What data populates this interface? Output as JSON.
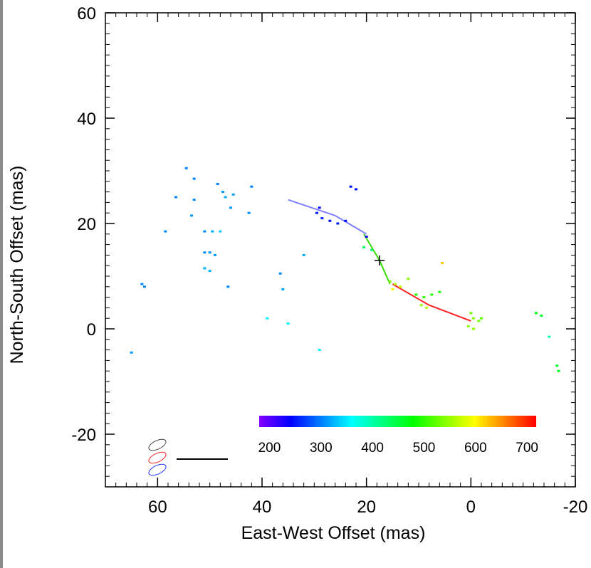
{
  "chart_data": {
    "type": "scatter",
    "title": "",
    "xlabel": "East-West Offset (mas)",
    "ylabel": "North-South Offset (mas)",
    "xlim": [
      70,
      -20
    ],
    "ylim": [
      -30,
      60
    ],
    "x_ticks": [
      "60",
      "40",
      "20",
      "0",
      "-20"
    ],
    "x_tick_values": [
      60,
      40,
      20,
      0,
      -20
    ],
    "y_ticks": [
      "60",
      "40",
      "20",
      "0",
      "-20"
    ],
    "y_tick_values": [
      60,
      40,
      20,
      0,
      -20
    ],
    "x_reversed": true,
    "grid": false,
    "color_axis": {
      "range": [
        180,
        715
      ],
      "ticks": [
        "200",
        "300",
        "400",
        "500",
        "600",
        "700"
      ],
      "tick_values": [
        200,
        300,
        400,
        500,
        600,
        700
      ],
      "colormap": "rainbow (violet-blue-cyan-green-yellow-red)"
    },
    "lines": [
      {
        "color": "#7f7fff",
        "points": [
          [
            35,
            24.5
          ],
          [
            26,
            21.5
          ],
          [
            20,
            18
          ]
        ]
      },
      {
        "color": "#33dd00",
        "points": [
          [
            20.5,
            18
          ],
          [
            17.5,
            13
          ],
          [
            15.5,
            8.5
          ]
        ]
      },
      {
        "color": "#ff2222",
        "points": [
          [
            15,
            8.5
          ],
          [
            8,
            4.5
          ],
          [
            0,
            1.5
          ]
        ]
      }
    ],
    "center_marker": [
      17.5,
      13
    ],
    "points": [
      {
        "x": 54.5,
        "y": 30.5,
        "c": 300
      },
      {
        "x": 53,
        "y": 28.5,
        "c": 300
      },
      {
        "x": 56.5,
        "y": 25,
        "c": 300
      },
      {
        "x": 53,
        "y": 24.5,
        "c": 305
      },
      {
        "x": 53.5,
        "y": 21.5,
        "c": 310
      },
      {
        "x": 58.5,
        "y": 18.5,
        "c": 305
      },
      {
        "x": 51,
        "y": 18.5,
        "c": 305
      },
      {
        "x": 49.5,
        "y": 18.5,
        "c": 320
      },
      {
        "x": 48,
        "y": 18.5,
        "c": 330
      },
      {
        "x": 51,
        "y": 14.5,
        "c": 305
      },
      {
        "x": 50,
        "y": 14.5,
        "c": 310
      },
      {
        "x": 49,
        "y": 14,
        "c": 315
      },
      {
        "x": 51,
        "y": 11.5,
        "c": 320
      },
      {
        "x": 50,
        "y": 11,
        "c": 325
      },
      {
        "x": 48.5,
        "y": 27.5,
        "c": 300
      },
      {
        "x": 47.5,
        "y": 26,
        "c": 310
      },
      {
        "x": 47,
        "y": 25,
        "c": 320
      },
      {
        "x": 45.5,
        "y": 25.5,
        "c": 315
      },
      {
        "x": 46,
        "y": 23,
        "c": 310
      },
      {
        "x": 42,
        "y": 27,
        "c": 300
      },
      {
        "x": 42.5,
        "y": 22,
        "c": 305
      },
      {
        "x": 46.5,
        "y": 8,
        "c": 305
      },
      {
        "x": 63,
        "y": 8.5,
        "c": 300
      },
      {
        "x": 62.5,
        "y": 8,
        "c": 305
      },
      {
        "x": 65,
        "y": -4.5,
        "c": 310
      },
      {
        "x": 36.5,
        "y": 10.5,
        "c": 305
      },
      {
        "x": 36,
        "y": 7.5,
        "c": 315
      },
      {
        "x": 32,
        "y": 14,
        "c": 320
      },
      {
        "x": 39,
        "y": 2,
        "c": 350
      },
      {
        "x": 35,
        "y": 1,
        "c": 355
      },
      {
        "x": 29,
        "y": -4,
        "c": 360
      },
      {
        "x": 29,
        "y": 23,
        "c": 245
      },
      {
        "x": 29.5,
        "y": 22,
        "c": 250
      },
      {
        "x": 28.5,
        "y": 21,
        "c": 255
      },
      {
        "x": 27,
        "y": 20.5,
        "c": 250
      },
      {
        "x": 25.5,
        "y": 20,
        "c": 255
      },
      {
        "x": 24,
        "y": 20.5,
        "c": 245
      },
      {
        "x": 23,
        "y": 27,
        "c": 250
      },
      {
        "x": 22,
        "y": 26.5,
        "c": 245
      },
      {
        "x": 20,
        "y": 17.5,
        "c": 230
      },
      {
        "x": 19,
        "y": 15,
        "c": 430
      },
      {
        "x": 20.5,
        "y": 15.5,
        "c": 435
      },
      {
        "x": 15.5,
        "y": 9,
        "c": 540
      },
      {
        "x": 14.5,
        "y": 8.5,
        "c": 560
      },
      {
        "x": 13.5,
        "y": 8,
        "c": 570
      },
      {
        "x": 15,
        "y": 7.5,
        "c": 590
      },
      {
        "x": 12,
        "y": 9.5,
        "c": 540
      },
      {
        "x": 10.5,
        "y": 6.5,
        "c": 490
      },
      {
        "x": 9,
        "y": 6,
        "c": 500
      },
      {
        "x": 7.5,
        "y": 6.5,
        "c": 495
      },
      {
        "x": 6,
        "y": 7,
        "c": 485
      },
      {
        "x": 9.5,
        "y": 4.5,
        "c": 545
      },
      {
        "x": 8.5,
        "y": 4,
        "c": 560
      },
      {
        "x": 5.5,
        "y": 12.5,
        "c": 620
      },
      {
        "x": 0,
        "y": 3,
        "c": 530
      },
      {
        "x": -0.5,
        "y": 2,
        "c": 540
      },
      {
        "x": -1.5,
        "y": 1.5,
        "c": 530
      },
      {
        "x": 0.5,
        "y": 0.5,
        "c": 545
      },
      {
        "x": -0.5,
        "y": 0,
        "c": 540
      },
      {
        "x": -2,
        "y": 2,
        "c": 520
      },
      {
        "x": -12.5,
        "y": 3,
        "c": 470
      },
      {
        "x": -13.5,
        "y": 2.5,
        "c": 450
      },
      {
        "x": -15,
        "y": -1.5,
        "c": 395
      },
      {
        "x": -16.5,
        "y": -7,
        "c": 455
      },
      {
        "x": -16.8,
        "y": -8,
        "c": 465
      }
    ]
  }
}
